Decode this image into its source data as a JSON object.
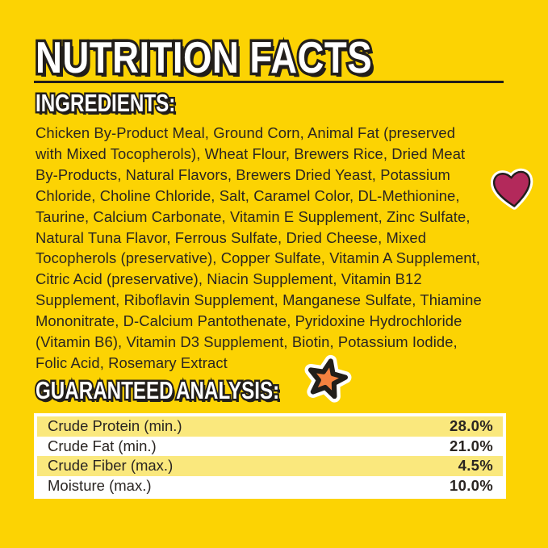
{
  "colors": {
    "background": "#FCD303",
    "ink": "#221E1A",
    "text": "#2A2522",
    "row_alt": "#FAE87D",
    "row_base": "#FFFFFF",
    "heart": "#B3295B",
    "star": "#F5813F"
  },
  "header": {
    "title": "NUTRITION FACTS"
  },
  "ingredients": {
    "heading": "INGREDIENTS:",
    "text": "Chicken By-Product Meal, Ground Corn, Animal Fat (preserved\nwith Mixed Tocopherols), Wheat Flour, Brewers Rice, Dried Meat\nBy-Products, Natural Flavors, Brewers Dried Yeast, Potassium\nChloride, Choline Chloride, Salt, Caramel Color, DL-Methionine,\nTaurine, Calcium Carbonate, Vitamin E Supplement, Zinc Sulfate,\nNatural Tuna Flavor, Ferrous Sulfate, Dried Cheese, Mixed\nTocopherols (preservative), Copper Sulfate, Vitamin A Supplement,\nCitric Acid (preservative), Niacin Supplement, Vitamin B12\nSupplement, Riboflavin Supplement, Manganese Sulfate, Thiamine\nMononitrate, D-Calcium Pantothenate, Pyridoxine Hydrochloride\n(Vitamin B6), Vitamin D3 Supplement, Biotin, Potassium Iodide,\nFolic Acid, Rosemary Extract"
  },
  "guaranteed_analysis": {
    "heading": "GUARANTEED ANALYSIS:",
    "rows": [
      {
        "label": "Crude Protein (min.)",
        "value": "28.0%"
      },
      {
        "label": "Crude Fat (min.)",
        "value": "21.0%"
      },
      {
        "label": "Crude Fiber (max.)",
        "value": "4.5%"
      },
      {
        "label": "Moisture (max.)",
        "value": "10.0%"
      }
    ]
  },
  "decorations": {
    "heart_icon": "heart-sticker",
    "star_icon": "star-sticker"
  }
}
